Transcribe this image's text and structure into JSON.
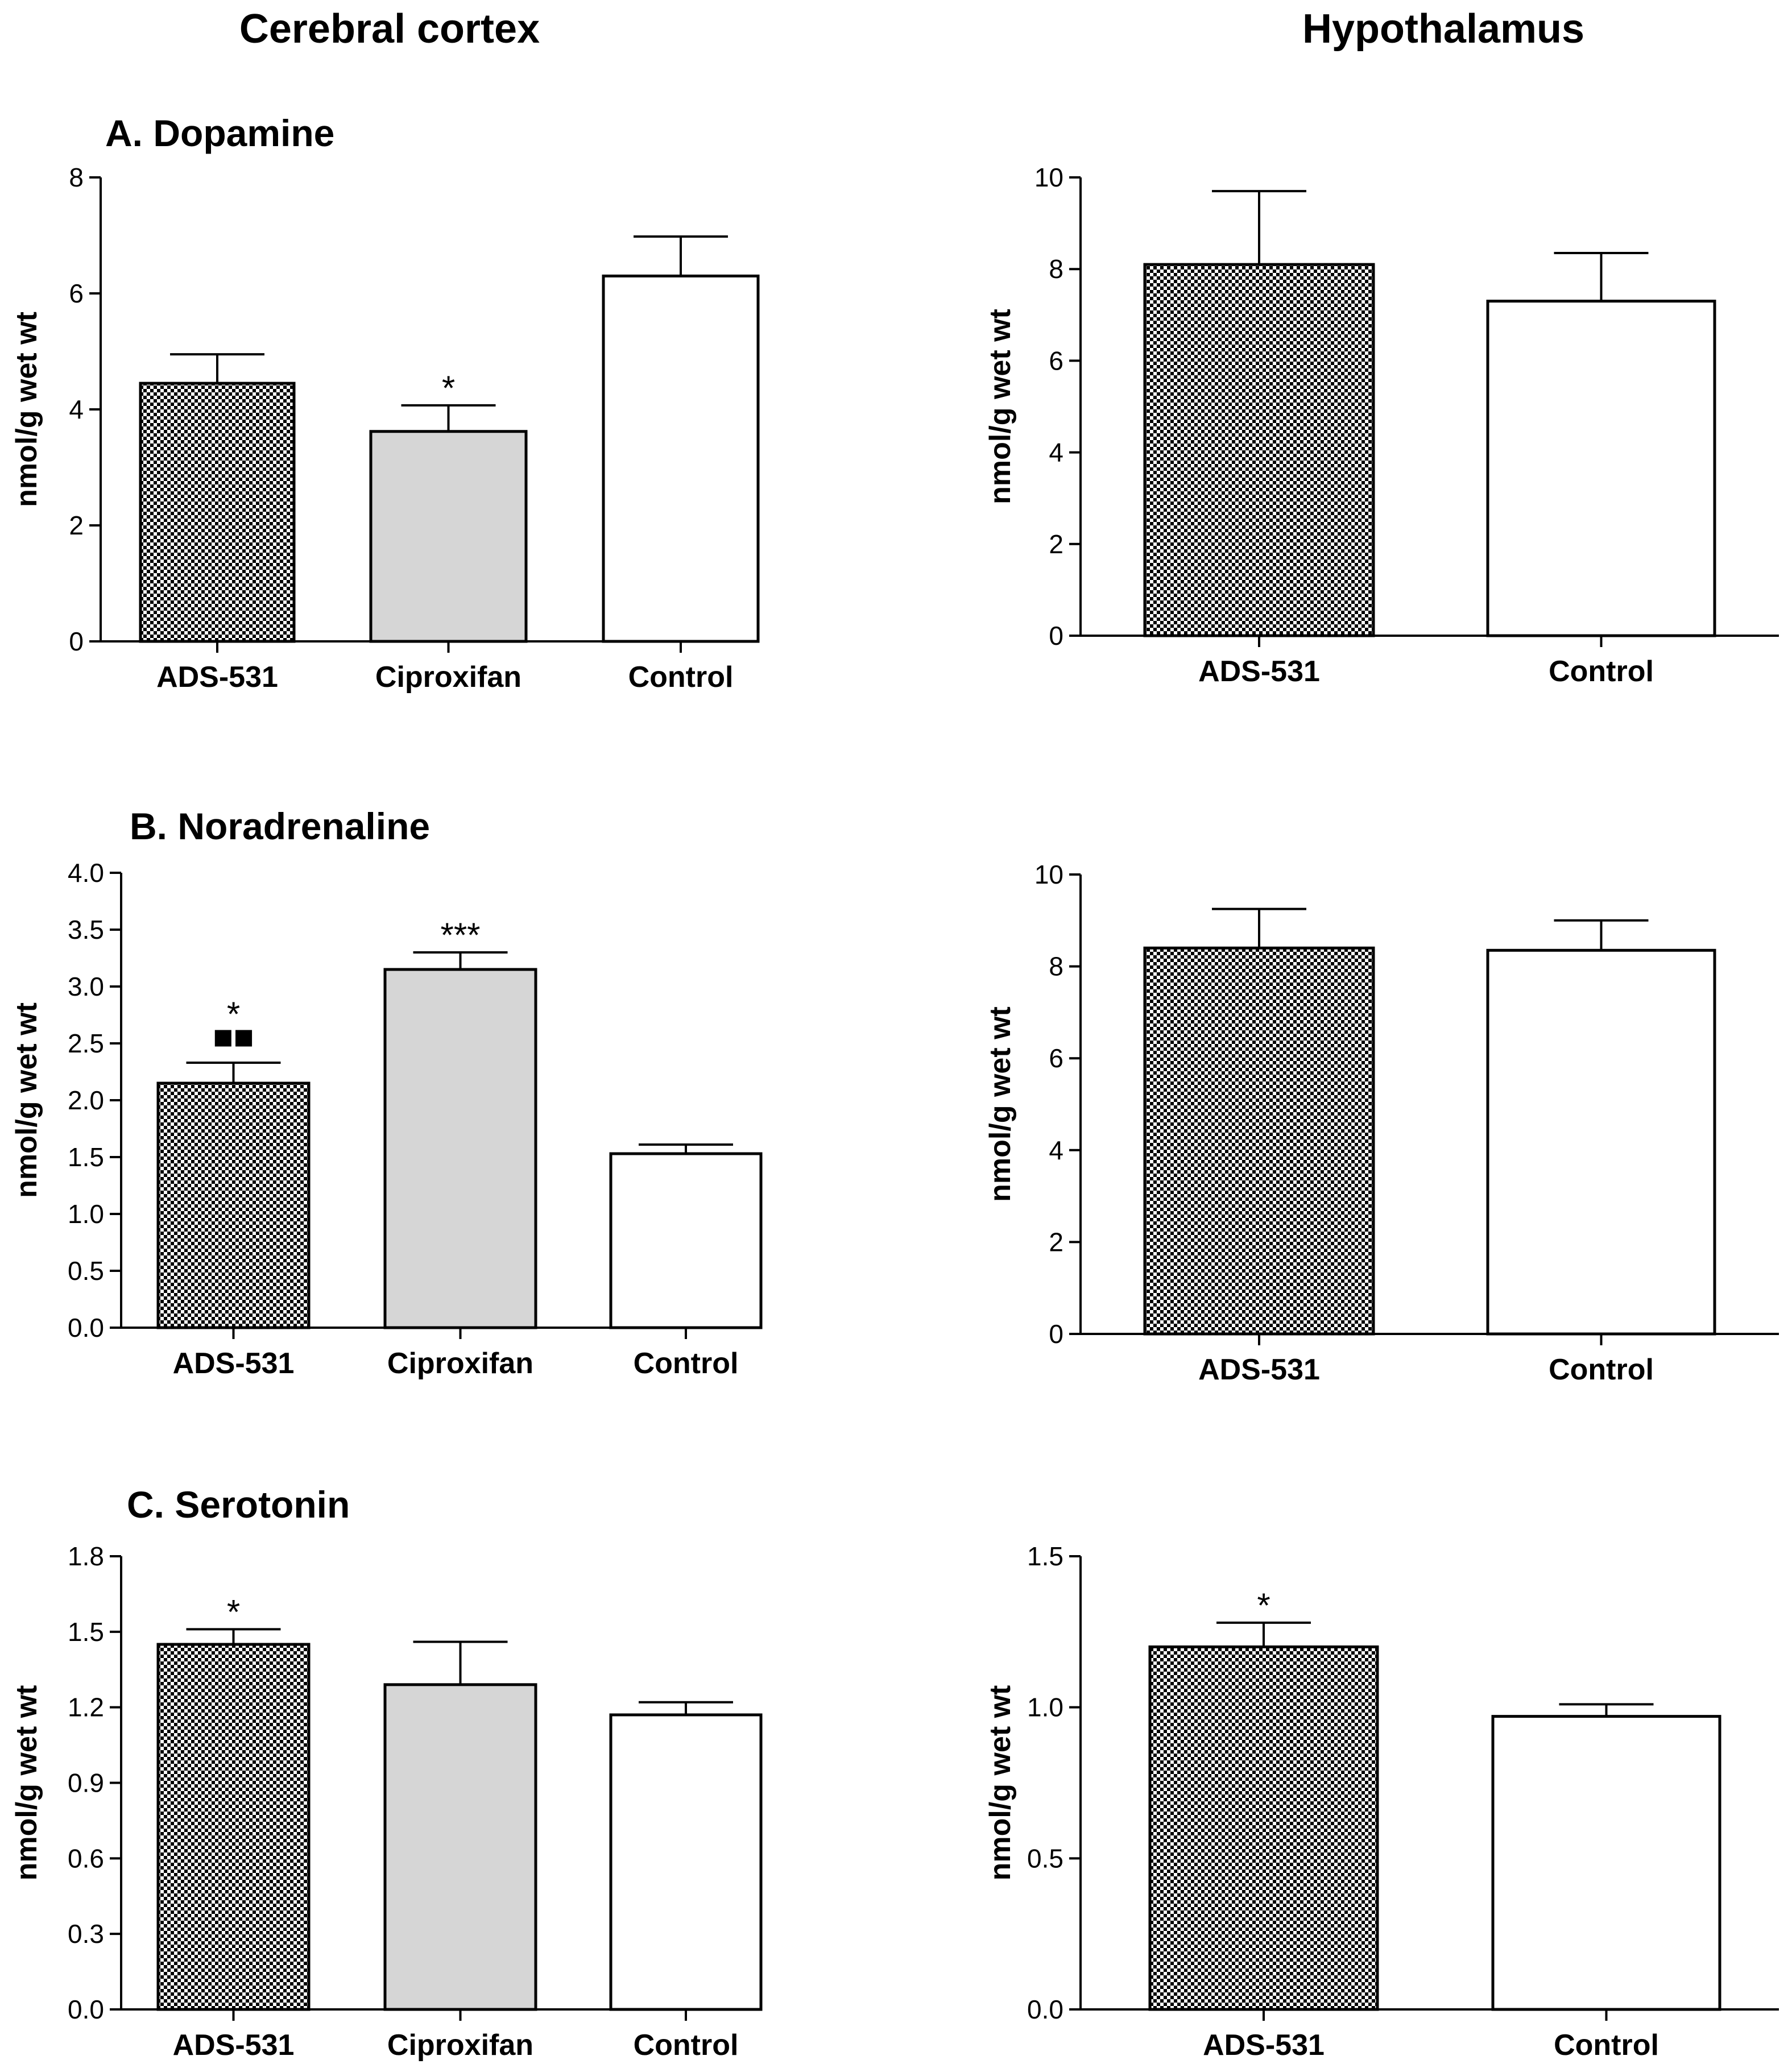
{
  "column_titles": {
    "left": "Cerebral cortex",
    "right": "Hypothalamus"
  },
  "colors": {
    "ciproxifan_fill": "#d6d6d6",
    "control_fill": "#ffffff",
    "axis": "#000000"
  },
  "chart_data": [
    {
      "id": "dopamine-cortex",
      "type": "bar",
      "title": "A. Dopamine",
      "ylabel": "nmol/g wet wt",
      "categories": [
        "ADS-531",
        "Ciproxifan",
        "Control"
      ],
      "values": [
        4.45,
        3.62,
        6.3
      ],
      "errors": [
        0.5,
        0.45,
        0.68
      ],
      "fills": [
        "checker",
        "gray",
        "white"
      ],
      "ylim": [
        0,
        8
      ],
      "yticks": [
        "0",
        "2",
        "4",
        "6",
        "8"
      ],
      "annotations": [
        {
          "bar": 1,
          "text": "*"
        }
      ]
    },
    {
      "id": "dopamine-hypothalamus",
      "type": "bar",
      "title": "",
      "ylabel": "nmol/g wet wt",
      "categories": [
        "ADS-531",
        "Control"
      ],
      "values": [
        8.1,
        7.3
      ],
      "errors": [
        1.6,
        1.05
      ],
      "fills": [
        "checker",
        "white"
      ],
      "ylim": [
        0,
        10
      ],
      "yticks": [
        "0",
        "2",
        "4",
        "6",
        "8",
        "10"
      ],
      "annotations": []
    },
    {
      "id": "noradrenaline-cortex",
      "type": "bar",
      "title": "B. Noradrenaline",
      "ylabel": "nmol/g wet wt",
      "categories": [
        "ADS-531",
        "Ciproxifan",
        "Control"
      ],
      "values": [
        2.15,
        3.15,
        1.53
      ],
      "errors": [
        0.18,
        0.15,
        0.08
      ],
      "fills": [
        "checker",
        "gray",
        "white"
      ],
      "ylim": [
        0,
        4
      ],
      "yticks": [
        "0.0",
        "0.5",
        "1.0",
        "1.5",
        "2.0",
        "2.5",
        "3.0",
        "3.5",
        "4.0"
      ],
      "annotations": [
        {
          "bar": 0,
          "text": "*"
        },
        {
          "bar": 0,
          "text": "■■"
        },
        {
          "bar": 1,
          "text": "***"
        }
      ]
    },
    {
      "id": "noradrenaline-hypothalamus",
      "type": "bar",
      "title": "",
      "ylabel": "nmol/g wet wt",
      "categories": [
        "ADS-531",
        "Control"
      ],
      "values": [
        8.4,
        8.35
      ],
      "errors": [
        0.85,
        0.65
      ],
      "fills": [
        "checker",
        "white"
      ],
      "ylim": [
        0,
        10
      ],
      "yticks": [
        "0",
        "2",
        "4",
        "6",
        "8",
        "10"
      ],
      "annotations": []
    },
    {
      "id": "serotonin-cortex",
      "type": "bar",
      "title": "C. Serotonin",
      "ylabel": "nmol/g wet wt",
      "categories": [
        "ADS-531",
        "Ciproxifan",
        "Control"
      ],
      "values": [
        1.45,
        1.29,
        1.17
      ],
      "errors": [
        0.06,
        0.17,
        0.05
      ],
      "fills": [
        "checker",
        "gray",
        "white"
      ],
      "ylim": [
        0,
        1.8
      ],
      "yticks": [
        "0.0",
        "0.3",
        "0.6",
        "0.9",
        "1.2",
        "1.5",
        "1.8"
      ],
      "annotations": [
        {
          "bar": 0,
          "text": "*"
        }
      ]
    },
    {
      "id": "serotonin-hypothalamus",
      "type": "bar",
      "title": "",
      "ylabel": "nmol/g wet wt",
      "categories": [
        "ADS-531",
        "Control"
      ],
      "values": [
        1.2,
        0.97
      ],
      "errors": [
        0.08,
        0.04
      ],
      "fills": [
        "checker",
        "white"
      ],
      "ylim": [
        0,
        1.5
      ],
      "yticks": [
        "0.0",
        "0.5",
        "1.0",
        "1.5"
      ],
      "annotations": [
        {
          "bar": 0,
          "text": "*"
        }
      ]
    }
  ]
}
